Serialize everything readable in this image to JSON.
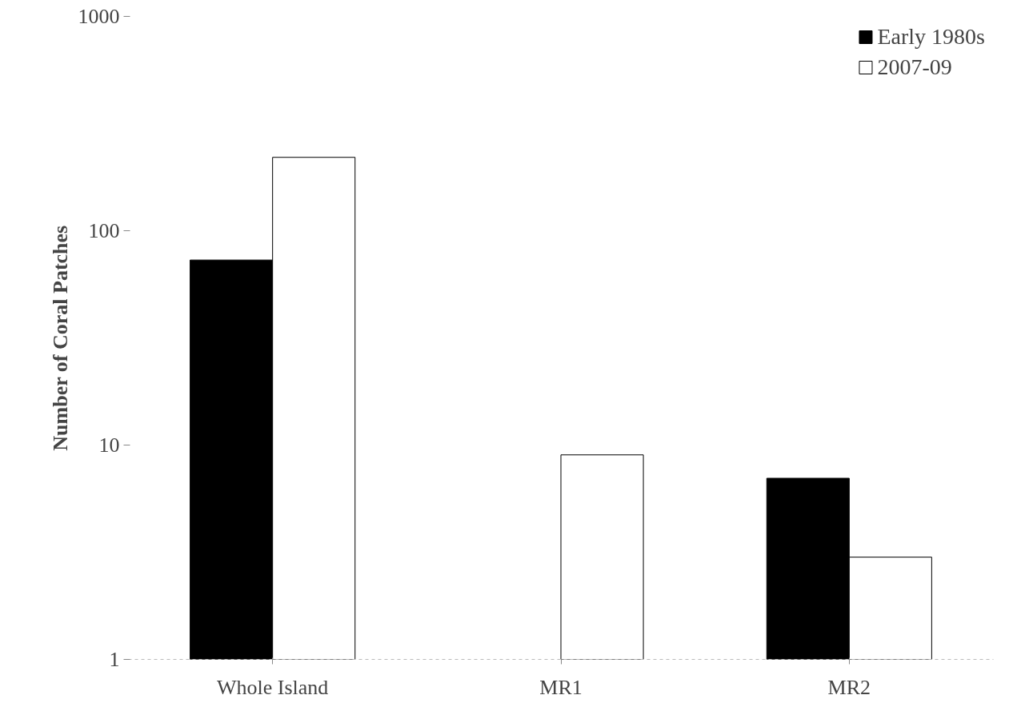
{
  "chart_data": {
    "type": "bar",
    "ylabel": "Number of Coral Patches",
    "categories": [
      "Whole Island",
      "MR1",
      "MR2"
    ],
    "series": [
      {
        "name": "Early 1980s",
        "color": "#000000",
        "values": [
          73,
          null,
          7
        ]
      },
      {
        "name": "2007-09",
        "color": "#ffffff",
        "values": [
          220,
          9,
          3
        ]
      }
    ],
    "log": true,
    "ylim": [
      1,
      1000
    ],
    "yticks": [
      1,
      10,
      100,
      1000
    ],
    "grid": false,
    "legend": "top right"
  }
}
